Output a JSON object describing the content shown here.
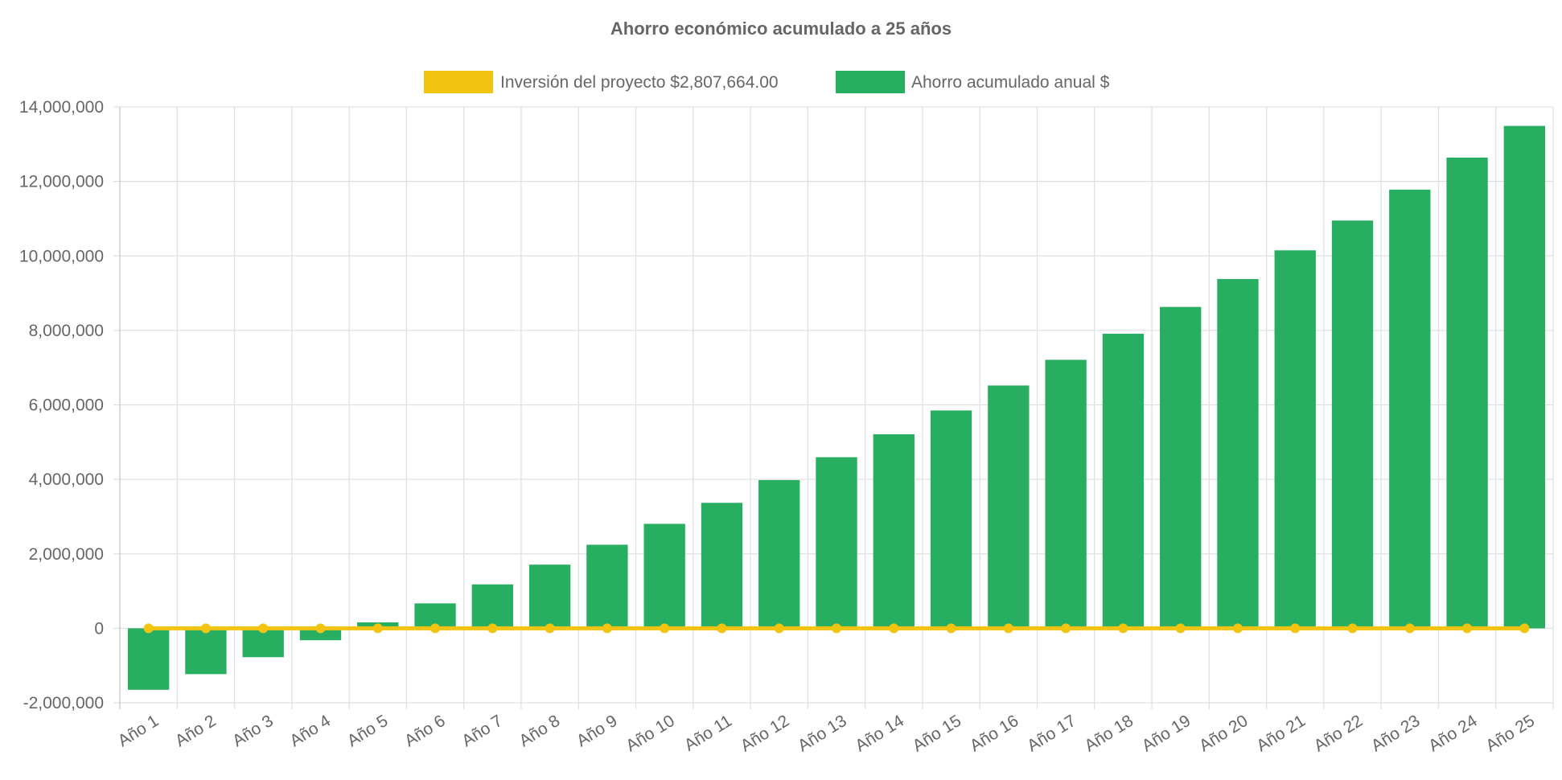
{
  "chart_data": {
    "type": "bar",
    "title": "Ahorro económico acumulado a 25 años",
    "categories": [
      "Año 1",
      "Año 2",
      "Año 3",
      "Año 4",
      "Año 5",
      "Año 6",
      "Año 7",
      "Año 8",
      "Año 9",
      "Año 10",
      "Año 11",
      "Año 12",
      "Año 13",
      "Año 14",
      "Año 15",
      "Año 16",
      "Año 17",
      "Año 18",
      "Año 19",
      "Año 20",
      "Año 21",
      "Año 22",
      "Año 23",
      "Año 24",
      "Año 25"
    ],
    "series": [
      {
        "name": "Inversión del proyecto $2,807,664.00",
        "type": "line",
        "color": "#f2c40f",
        "values": [
          0,
          0,
          0,
          0,
          0,
          0,
          0,
          0,
          0,
          0,
          0,
          0,
          0,
          0,
          0,
          0,
          0,
          0,
          0,
          0,
          0,
          0,
          0,
          0,
          0
        ]
      },
      {
        "name": "Ahorro acumulado anual $",
        "type": "bar",
        "color": "#27ae60",
        "values": [
          -1650000,
          -1230000,
          -775000,
          -320000,
          160000,
          670000,
          1180000,
          1710000,
          2245000,
          2805000,
          3370000,
          3980000,
          4595000,
          5210000,
          5850000,
          6520000,
          7210000,
          7910000,
          8630000,
          9380000,
          10150000,
          10950000,
          11780000,
          12640000,
          13490000
        ]
      }
    ],
    "ylim": [
      -2000000,
      14000000
    ],
    "yticks": [
      "-2,000,000",
      "0",
      "2,000,000",
      "4,000,000",
      "6,000,000",
      "8,000,000",
      "10,000,000",
      "12,000,000",
      "14,000,000"
    ],
    "grid": true,
    "legend": "top"
  }
}
